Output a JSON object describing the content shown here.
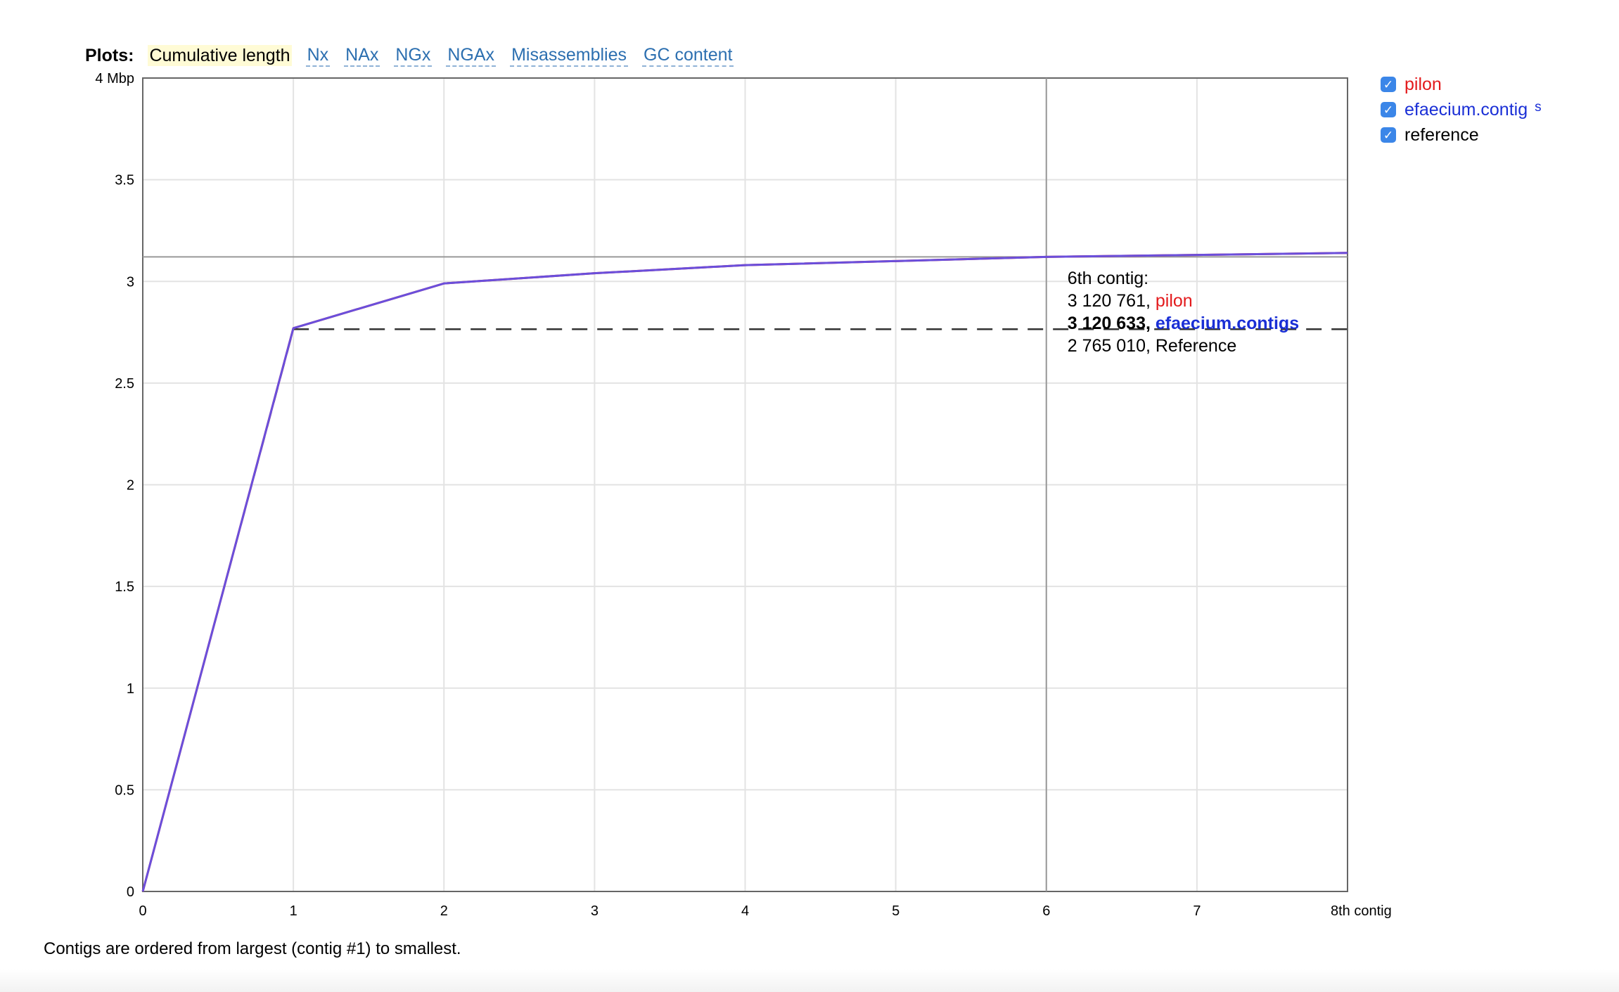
{
  "plots": {
    "label": "Plots:",
    "tabs": [
      {
        "label": "Cumulative length",
        "active": true
      },
      {
        "label": "Nx",
        "active": false
      },
      {
        "label": "NAx",
        "active": false
      },
      {
        "label": "NGx",
        "active": false
      },
      {
        "label": "NGAx",
        "active": false
      },
      {
        "label": "Misassemblies",
        "active": false
      },
      {
        "label": "GC content",
        "active": false
      }
    ]
  },
  "legend": {
    "items": [
      {
        "label": "pilon",
        "checked": true,
        "color": "#e31a1c"
      },
      {
        "label": "efaecium.contig",
        "checked": true,
        "color": "#1a2fd6"
      },
      {
        "label": "reference",
        "checked": true,
        "color": "#000000"
      }
    ],
    "suffix": "s"
  },
  "tooltip": {
    "title": "6th contig:",
    "rows": [
      {
        "value": "3 120 761,",
        "name": "pilon",
        "color": "#e31a1c"
      },
      {
        "value": "3 120 633,",
        "name": "efaecium.contigs",
        "color": "#1a2fd6"
      },
      {
        "value": "2 765 010,",
        "name": "Reference",
        "color": "#000000"
      }
    ]
  },
  "footnote": "Contigs are ordered from largest (contig #1) to smallest.",
  "chart_data": {
    "type": "line",
    "x": [
      0,
      1,
      2,
      3,
      4,
      5,
      6,
      7,
      8
    ],
    "xlim": [
      0,
      8
    ],
    "ylim": [
      0,
      4
    ],
    "ylabel_unit": "Mbp",
    "xticks": [
      "0",
      "1",
      "2",
      "3",
      "4",
      "5",
      "6",
      "7",
      "8th contig"
    ],
    "yticks": [
      "0",
      "0.5",
      "1",
      "1.5",
      "2",
      "2.5",
      "3",
      "3.5",
      "4 Mbp"
    ],
    "grid": true,
    "crosshair": {
      "x": 6,
      "y": 3.120761
    },
    "series": [
      {
        "name": "pilon",
        "color": "#e31a1c",
        "dashed": false,
        "values": [
          0,
          2.77,
          2.99,
          3.04,
          3.08,
          3.1,
          3.120761,
          3.13,
          3.14
        ]
      },
      {
        "name": "efaecium.contigs",
        "color": "#6a4fdc",
        "dashed": false,
        "values": [
          0,
          2.77,
          2.99,
          3.04,
          3.08,
          3.1,
          3.120633,
          3.13,
          3.14
        ]
      },
      {
        "name": "Reference",
        "color": "#333333",
        "dashed": true,
        "values": [
          0,
          2.76501,
          2.76501,
          2.76501,
          2.76501,
          2.76501,
          2.76501,
          2.76501,
          2.76501
        ]
      }
    ]
  }
}
